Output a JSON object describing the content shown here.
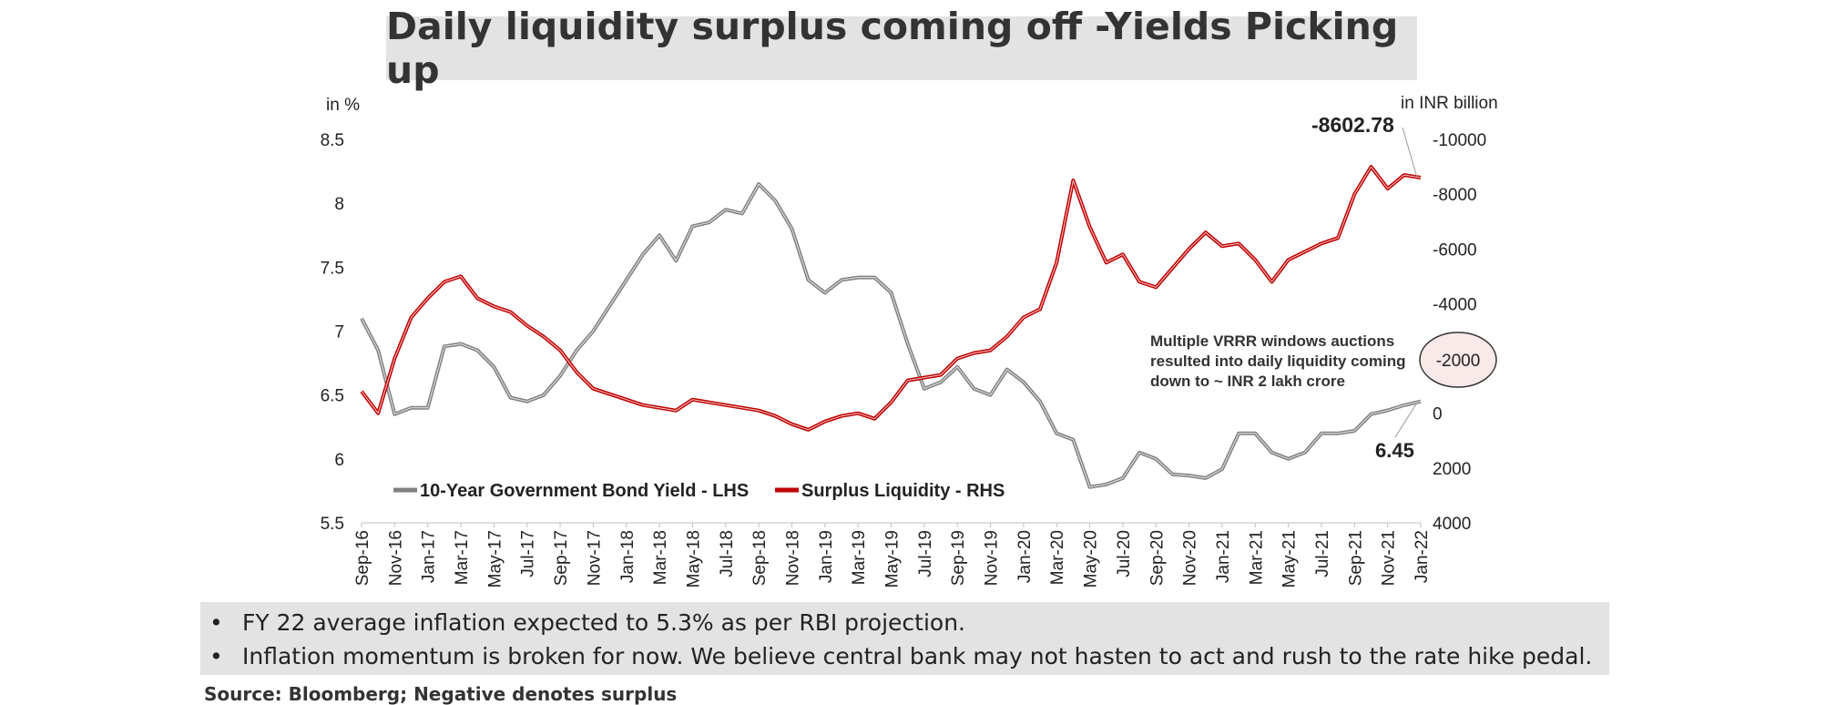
{
  "title": "Daily liquidity surplus coming off -Yields Picking up",
  "bullets": [
    "FY 22 average inflation expected to 5.3% as per RBI projection.",
    "Inflation momentum is broken for now. We believe central bank may not hasten to act and rush to the rate hike pedal."
  ],
  "bullet_marker": "•",
  "source": "Source: Bloomberg; Negative denotes surplus",
  "colors": {
    "yield": "#808080",
    "liquidity": "#c00000",
    "panel": "#e3e3e3"
  },
  "chart_data": {
    "type": "line",
    "x_tick_labels": [
      "Sep-16",
      "Nov-16",
      "Jan-17",
      "Mar-17",
      "May-17",
      "Jul-17",
      "Sep-17",
      "Nov-17",
      "Jan-18",
      "Mar-18",
      "May-18",
      "Jul-18",
      "Sep-18",
      "Nov-18",
      "Jan-19",
      "Mar-19",
      "May-19",
      "Jul-19",
      "Sep-19",
      "Nov-19",
      "Jan-20",
      "Mar-20",
      "May-20",
      "Jul-20",
      "Sep-20",
      "Nov-20",
      "Jan-21",
      "Mar-21",
      "May-21",
      "Jul-21",
      "Sep-21",
      "Nov-21",
      "Jan-22"
    ],
    "left_axis": {
      "label": "in %",
      "range": [
        5.5,
        8.5
      ],
      "ticks": [
        "8.5",
        "8",
        "7.5",
        "7",
        "6.5",
        "6",
        "5.5"
      ],
      "tick_values": [
        8.5,
        8,
        7.5,
        7,
        6.5,
        6,
        5.5
      ]
    },
    "right_axis": {
      "label": "in INR billion",
      "range": [
        -10000,
        4000
      ],
      "reversed": true,
      "ticks": [
        "-10000",
        "-8000",
        "-6000",
        "-4000",
        "-2000",
        "0",
        "2000",
        "4000"
      ],
      "tick_values": [
        -10000,
        -8000,
        -6000,
        -4000,
        -2000,
        0,
        2000,
        4000
      ]
    },
    "legend_placement": "bottom-left",
    "series": [
      {
        "name": "10-Year Government Bond Yield - LHS",
        "axis": "left",
        "color": "#808080",
        "x": [
          "Sep-16",
          "Oct-16",
          "Nov-16",
          "Dec-16",
          "Jan-17",
          "Feb-17",
          "Mar-17",
          "Apr-17",
          "May-17",
          "Jun-17",
          "Jul-17",
          "Aug-17",
          "Sep-17",
          "Oct-17",
          "Nov-17",
          "Dec-17",
          "Jan-18",
          "Feb-18",
          "Mar-18",
          "Apr-18",
          "May-18",
          "Jun-18",
          "Jul-18",
          "Aug-18",
          "Sep-18",
          "Oct-18",
          "Nov-18",
          "Dec-18",
          "Jan-19",
          "Feb-19",
          "Mar-19",
          "Apr-19",
          "May-19",
          "Jun-19",
          "Jul-19",
          "Aug-19",
          "Sep-19",
          "Oct-19",
          "Nov-19",
          "Dec-19",
          "Jan-20",
          "Feb-20",
          "Mar-20",
          "Apr-20",
          "May-20",
          "Jun-20",
          "Jul-20",
          "Aug-20",
          "Sep-20",
          "Oct-20",
          "Nov-20",
          "Dec-20",
          "Jan-21",
          "Feb-21",
          "Mar-21",
          "Apr-21",
          "May-21",
          "Jun-21",
          "Jul-21",
          "Aug-21",
          "Sep-21",
          "Oct-21",
          "Nov-21",
          "Dec-21",
          "Jan-22"
        ],
        "values": [
          7.1,
          6.85,
          6.35,
          6.4,
          6.4,
          6.88,
          6.9,
          6.85,
          6.72,
          6.48,
          6.45,
          6.5,
          6.65,
          6.85,
          7.0,
          7.2,
          7.4,
          7.6,
          7.75,
          7.55,
          7.82,
          7.85,
          7.95,
          7.92,
          8.15,
          8.02,
          7.8,
          7.4,
          7.3,
          7.4,
          7.42,
          7.42,
          7.3,
          6.9,
          6.55,
          6.6,
          6.72,
          6.55,
          6.5,
          6.7,
          6.6,
          6.45,
          6.2,
          6.15,
          5.78,
          5.8,
          5.85,
          6.05,
          6.0,
          5.88,
          5.87,
          5.85,
          5.92,
          6.2,
          6.2,
          6.05,
          6.0,
          6.05,
          6.2,
          6.2,
          6.22,
          6.35,
          6.38,
          6.42,
          6.45
        ],
        "annotation": "6.45"
      },
      {
        "name": "Surplus Liquidity - RHS",
        "axis": "right",
        "color": "#c00000",
        "x": [
          "Sep-16",
          "Oct-16",
          "Nov-16",
          "Dec-16",
          "Jan-17",
          "Feb-17",
          "Mar-17",
          "Apr-17",
          "May-17",
          "Jun-17",
          "Jul-17",
          "Aug-17",
          "Sep-17",
          "Oct-17",
          "Nov-17",
          "Dec-17",
          "Jan-18",
          "Feb-18",
          "Mar-18",
          "Apr-18",
          "May-18",
          "Jun-18",
          "Jul-18",
          "Aug-18",
          "Sep-18",
          "Oct-18",
          "Nov-18",
          "Dec-18",
          "Jan-19",
          "Feb-19",
          "Mar-19",
          "Apr-19",
          "May-19",
          "Jun-19",
          "Jul-19",
          "Aug-19",
          "Sep-19",
          "Oct-19",
          "Nov-19",
          "Dec-19",
          "Jan-20",
          "Feb-20",
          "Mar-20",
          "Apr-20",
          "May-20",
          "Jun-20",
          "Jul-20",
          "Aug-20",
          "Sep-20",
          "Oct-20",
          "Nov-20",
          "Dec-20",
          "Jan-21",
          "Feb-21",
          "Mar-21",
          "Apr-21",
          "May-21",
          "Jun-21",
          "Jul-21",
          "Aug-21",
          "Sep-21",
          "Oct-21",
          "Nov-21",
          "Dec-21",
          "Jan-22"
        ],
        "values": [
          -800,
          0,
          -2000,
          -3500,
          -4200,
          -4800,
          -5000,
          -4200,
          -3900,
          -3700,
          -3200,
          -2800,
          -2300,
          -1500,
          -900,
          -700,
          -500,
          -300,
          -200,
          -100,
          -500,
          -400,
          -300,
          -200,
          -100,
          100,
          400,
          600,
          300,
          100,
          0,
          200,
          -400,
          -1200,
          -1300,
          -1400,
          -2000,
          -2200,
          -2300,
          -2800,
          -3500,
          -3800,
          -5500,
          -8500,
          -6800,
          -5500,
          -5800,
          -4800,
          -4600,
          -5300,
          -6000,
          -6600,
          -6100,
          -6200,
          -5600,
          -4800,
          -5600,
          -5900,
          -6200,
          -6400,
          -8000,
          -9000,
          -8200,
          -8700,
          -8602.78
        ],
        "annotation": "-8602.78"
      }
    ],
    "annotations": [
      {
        "text": "-8602.78"
      },
      {
        "text": "6.45"
      },
      {
        "text": "Multiple VRRR windows auctions resulted into daily liquidity coming down to ~ INR 2 lakh crore",
        "lines": [
          "Multiple VRRR windows auctions",
          "resulted into daily liquidity coming",
          "down to ~ INR 2 lakh crore"
        ]
      },
      {
        "text": "-2000",
        "highlighted": true
      }
    ]
  }
}
